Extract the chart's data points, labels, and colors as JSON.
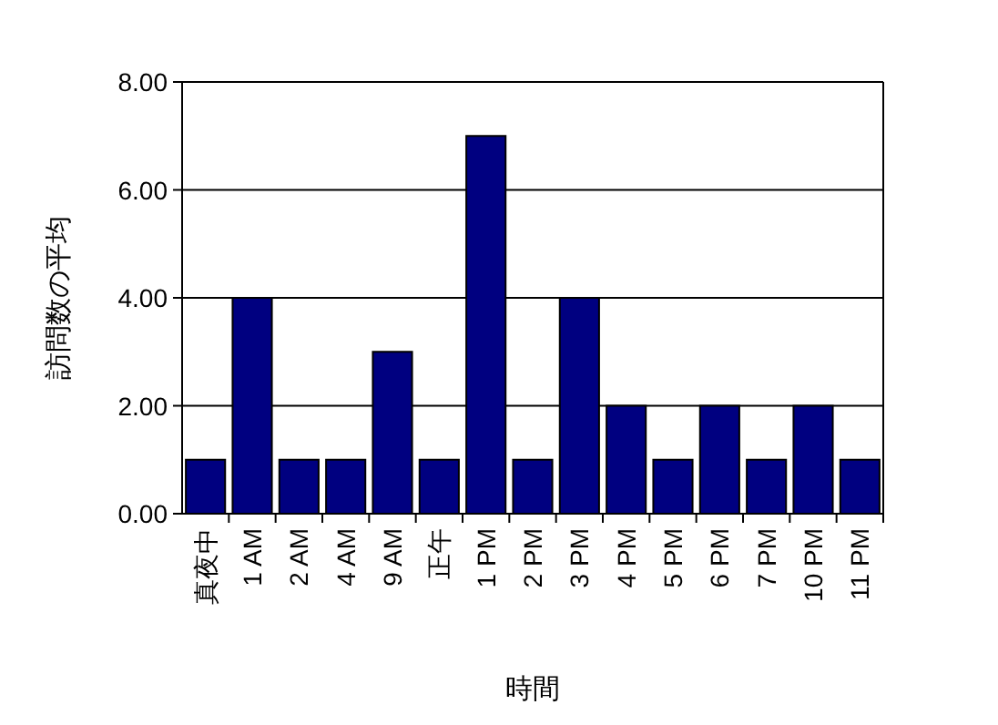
{
  "chart_data": {
    "type": "bar",
    "xlabel": "時間",
    "ylabel": "訪問数の平均",
    "categories": [
      "真夜中",
      "1 AM",
      "2 AM",
      "4 AM",
      "9 AM",
      "正午",
      "1 PM",
      "2 PM",
      "3 PM",
      "4 PM",
      "5 PM",
      "6 PM",
      "7 PM",
      "10 PM",
      "11 PM"
    ],
    "values": [
      1,
      4,
      1,
      1,
      3,
      1,
      7,
      1,
      4,
      2,
      1,
      2,
      1,
      2,
      1
    ],
    "color": "#000080",
    "ylim": [
      0,
      8
    ],
    "yticks": [
      {
        "value": 0,
        "label": "0.00"
      },
      {
        "value": 2,
        "label": "2.00"
      },
      {
        "value": 4,
        "label": "4.00"
      },
      {
        "value": 6,
        "label": "6.00"
      },
      {
        "value": 8,
        "label": "8.00"
      }
    ],
    "grid": "y"
  }
}
